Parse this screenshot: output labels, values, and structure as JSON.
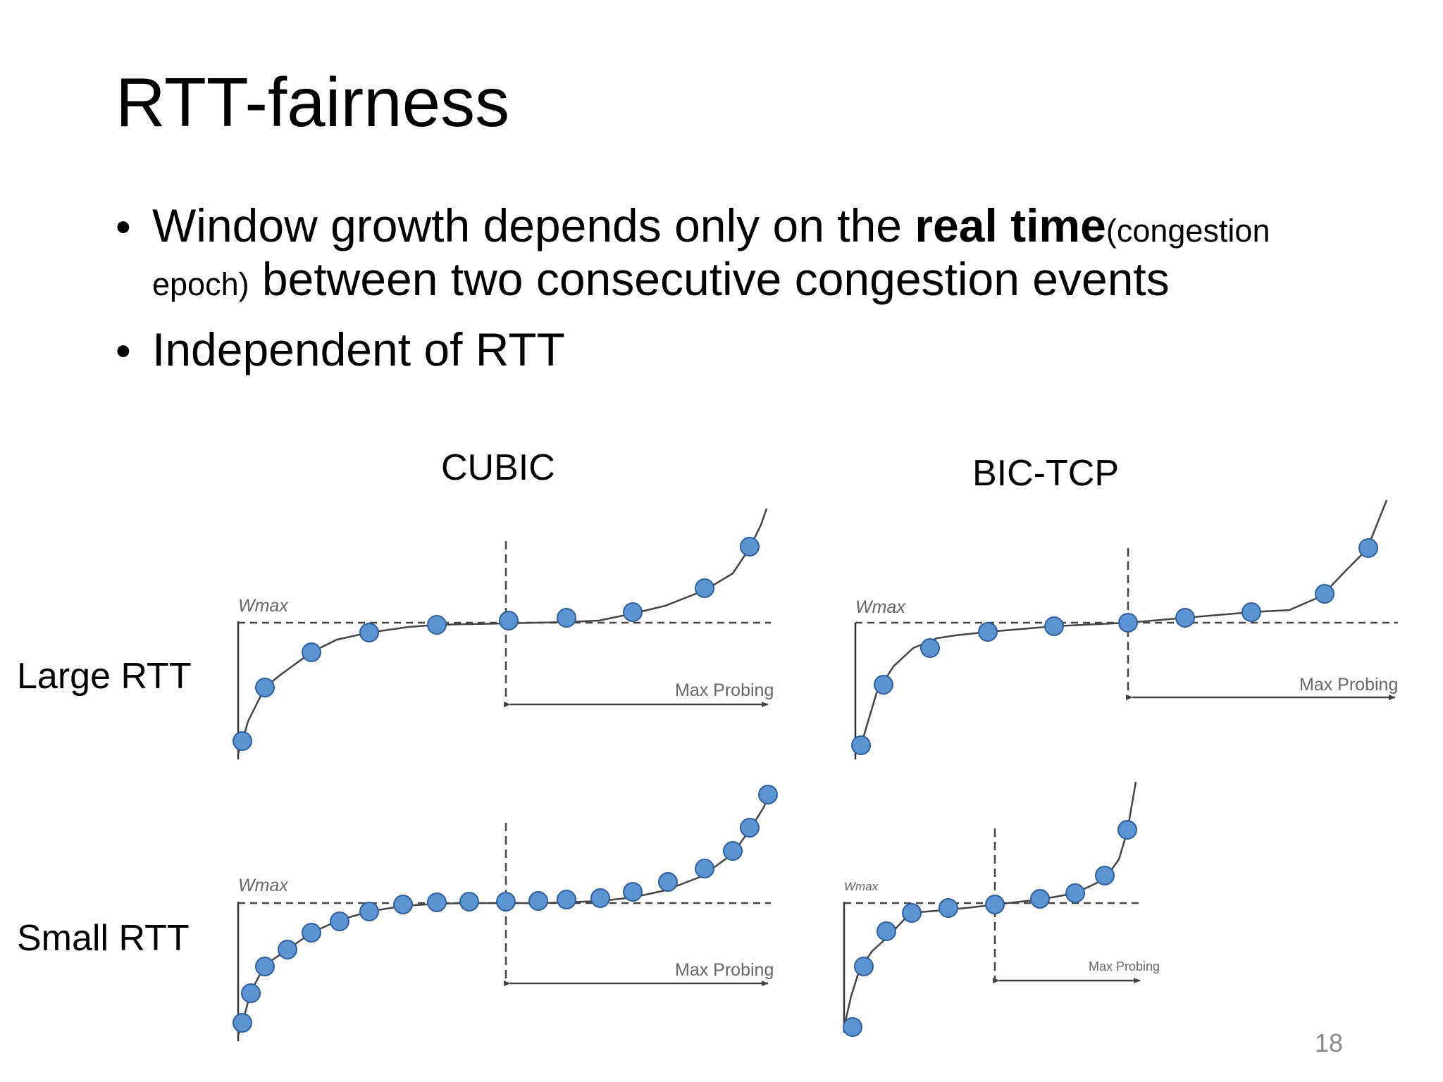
{
  "slide": {
    "title": "RTT-fairness",
    "bullets": [
      {
        "line1_text": "Window growth depends only on the ",
        "line1_bold": "real time",
        "line1_small": "(congestion",
        "line2_small": "epoch)",
        "line2_text": " between two consecutive congestion events"
      },
      {
        "text": "Independent of RTT"
      }
    ],
    "page_number": "18"
  },
  "diagram": {
    "column_labels": [
      "CUBIC",
      "BIC-TCP"
    ],
    "row_labels": [
      "Large RTT",
      "Small RTT"
    ],
    "wmax_label": "Wmax",
    "probing_label": "Max Probing",
    "colors": {
      "marker_fill": "#5b93d3",
      "marker_stroke": "#2f5f9a",
      "curve": "#444444",
      "dashed": "#444444"
    }
  }
}
